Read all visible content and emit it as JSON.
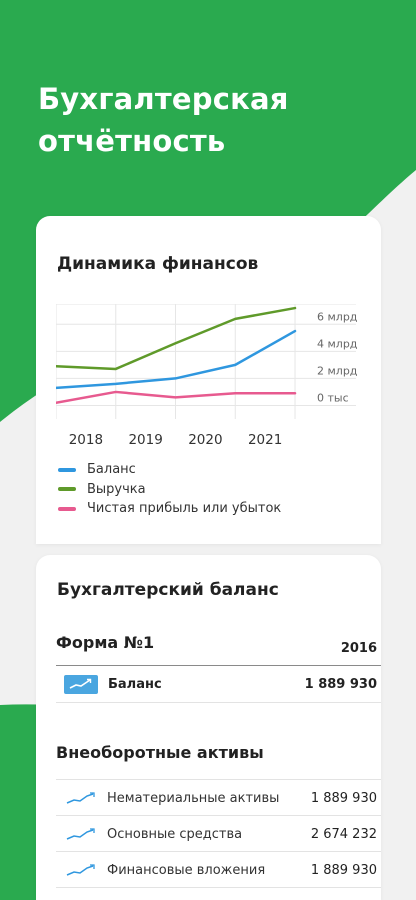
{
  "hero": {
    "title": "Бухгалтерская\nотчётность"
  },
  "colors": {
    "green": "#2aaa4f",
    "balance": "#2f97df",
    "revenue": "#5f9a2a",
    "profit": "#e75a8f",
    "icon_bg": "#4aa6e0"
  },
  "finance_card": {
    "title": "Динамика финансов",
    "legend": [
      {
        "label": "Баланс",
        "color": "#2f97df"
      },
      {
        "label": "Выручка",
        "color": "#5f9a2a"
      },
      {
        "label": "Чистая прибыль или убыток",
        "color": "#e75a8f"
      }
    ]
  },
  "chart_data": {
    "type": "line",
    "title": "Динамика финансов",
    "x": [
      "2017.5",
      "2018.25",
      "2019",
      "2019.5",
      "2020",
      "2020.5",
      "2021",
      "2021.5"
    ],
    "x_tick_labels": [
      "2018",
      "2019",
      "2020",
      "2021"
    ],
    "y_tick_labels": [
      "0 тыс",
      "2 млрд",
      "4 млрд",
      "6 млрд"
    ],
    "ylim": [
      -1,
      7.5
    ],
    "y_unit": "млрд",
    "grid": true,
    "legend_position": "bottom",
    "series": [
      {
        "name": "Баланс",
        "color": "#2f97df",
        "points": [
          [
            2017.5,
            1.3
          ],
          [
            2018.5,
            1.6
          ],
          [
            2019.5,
            2.0
          ],
          [
            2020.5,
            3.0
          ],
          [
            2021.5,
            5.5
          ]
        ]
      },
      {
        "name": "Выручка",
        "color": "#5f9a2a",
        "points": [
          [
            2017.5,
            2.9
          ],
          [
            2018.5,
            2.7
          ],
          [
            2019.5,
            4.6
          ],
          [
            2020.5,
            6.4
          ],
          [
            2021.5,
            7.2
          ]
        ]
      },
      {
        "name": "Чистая прибыль или убыток",
        "color": "#e75a8f",
        "points": [
          [
            2017.5,
            0.2
          ],
          [
            2018.5,
            1.0
          ],
          [
            2019.5,
            0.6
          ],
          [
            2020.5,
            0.9
          ],
          [
            2021.5,
            0.9
          ]
        ]
      }
    ]
  },
  "balance_card": {
    "title": "Бухгалтерский баланс",
    "form_title": "Форма №1",
    "year": "2016",
    "balance_label": "Баланс",
    "balance_value": "1 889 930",
    "section_title": "Внеоборотные активы",
    "assets": [
      {
        "label": "Нематериальные активы",
        "value": "1 889 930"
      },
      {
        "label": "Основные средства",
        "value": "2 674 232"
      },
      {
        "label": "Финансовые вложения",
        "value": "1 889 930"
      }
    ]
  }
}
